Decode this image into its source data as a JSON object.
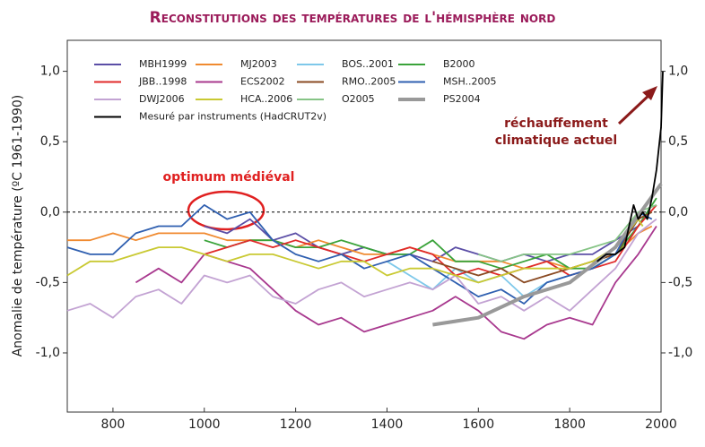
{
  "chart_data": {
    "type": "line",
    "title": "Reconstitutions des températures de l'hémisphère nord",
    "y_label": "Anomalie de température (ºC 1961-1990)",
    "annotations": [
      "optimum médiéval",
      "réchauffement",
      "climatique actuel"
    ],
    "xlim": [
      700,
      2000
    ],
    "xticks": [
      800,
      1000,
      1200,
      1400,
      1600,
      1800,
      2000
    ],
    "ylim": [
      -1.42,
      1.22
    ],
    "yticks": [
      {
        "value": 1.0,
        "label": "1,0"
      },
      {
        "value": 0.5,
        "label": "0,5"
      },
      {
        "value": 0,
        "label": "0,0"
      },
      {
        "value": -0.5,
        "label": "-0,5"
      },
      {
        "value": -1.0,
        "label": "-1,0"
      }
    ],
    "hline": 0,
    "series": [
      {
        "name": "MBH1999",
        "color": "#5b4ea6",
        "x": [
          1000,
          1050,
          1100,
          1150,
          1200,
          1250,
          1300,
          1350,
          1400,
          1450,
          1500,
          1550,
          1600,
          1650,
          1700,
          1750,
          1800,
          1850,
          1900,
          1950,
          1980
        ],
        "values": [
          -0.1,
          -0.15,
          -0.05,
          -0.2,
          -0.15,
          -0.25,
          -0.3,
          -0.25,
          -0.3,
          -0.3,
          -0.35,
          -0.25,
          -0.3,
          -0.35,
          -0.3,
          -0.35,
          -0.3,
          -0.3,
          -0.2,
          -0.1,
          0.05
        ]
      },
      {
        "name": "MJ2003",
        "color": "#f08a30",
        "x": [
          700,
          750,
          800,
          850,
          900,
          950,
          1000,
          1050,
          1100,
          1150,
          1200,
          1250,
          1300,
          1350,
          1400,
          1450,
          1500,
          1550,
          1600,
          1650,
          1700,
          1750,
          1800,
          1850,
          1900,
          1950,
          1980
        ],
        "values": [
          -0.2,
          -0.2,
          -0.15,
          -0.2,
          -0.15,
          -0.15,
          -0.15,
          -0.2,
          -0.2,
          -0.2,
          -0.25,
          -0.2,
          -0.25,
          -0.3,
          -0.3,
          -0.25,
          -0.3,
          -0.35,
          -0.35,
          -0.35,
          -0.4,
          -0.35,
          -0.4,
          -0.35,
          -0.3,
          -0.15,
          -0.1
        ]
      },
      {
        "name": "BOS..2001",
        "color": "#7ec8ea",
        "x": [
          1400,
          1450,
          1500,
          1550,
          1600,
          1650,
          1700,
          1750,
          1800,
          1850,
          1900,
          1950,
          1960
        ],
        "values": [
          -0.35,
          -0.45,
          -0.55,
          -0.4,
          -0.5,
          -0.45,
          -0.6,
          -0.5,
          -0.45,
          -0.4,
          -0.3,
          -0.05,
          -0.1
        ]
      },
      {
        "name": "B2000",
        "color": "#3aa33a",
        "x": [
          1000,
          1050,
          1100,
          1150,
          1200,
          1250,
          1300,
          1350,
          1400,
          1450,
          1500,
          1550,
          1600,
          1650,
          1700,
          1750,
          1800,
          1850,
          1900,
          1950,
          1990
        ],
        "values": [
          -0.2,
          -0.25,
          -0.2,
          -0.2,
          -0.25,
          -0.25,
          -0.2,
          -0.25,
          -0.3,
          -0.3,
          -0.2,
          -0.35,
          -0.35,
          -0.4,
          -0.35,
          -0.3,
          -0.4,
          -0.4,
          -0.3,
          -0.1,
          0.1
        ]
      },
      {
        "name": "JBB..1998",
        "color": "#e02a2a",
        "x": [
          1000,
          1050,
          1100,
          1150,
          1200,
          1250,
          1300,
          1350,
          1400,
          1450,
          1500,
          1550,
          1600,
          1650,
          1700,
          1750,
          1800,
          1850,
          1900,
          1950,
          1990
        ],
        "values": [
          -0.3,
          -0.25,
          -0.2,
          -0.25,
          -0.2,
          -0.25,
          -0.3,
          -0.35,
          -0.3,
          -0.25,
          -0.3,
          -0.45,
          -0.4,
          -0.45,
          -0.4,
          -0.35,
          -0.45,
          -0.4,
          -0.35,
          -0.1,
          0.05
        ]
      },
      {
        "name": "ECS2002",
        "color": "#a8388e",
        "x": [
          850,
          900,
          950,
          1000,
          1050,
          1100,
          1150,
          1200,
          1250,
          1300,
          1350,
          1400,
          1450,
          1500,
          1550,
          1600,
          1650,
          1700,
          1750,
          1800,
          1850,
          1900,
          1950,
          1990
        ],
        "values": [
          -0.5,
          -0.4,
          -0.5,
          -0.3,
          -0.35,
          -0.4,
          -0.55,
          -0.7,
          -0.8,
          -0.75,
          -0.85,
          -0.8,
          -0.75,
          -0.7,
          -0.6,
          -0.7,
          -0.85,
          -0.9,
          -0.8,
          -0.75,
          -0.8,
          -0.5,
          -0.3,
          -0.1
        ]
      },
      {
        "name": "RMO..2005",
        "color": "#8a4a22",
        "x": [
          1500,
          1550,
          1600,
          1650,
          1700,
          1750,
          1800,
          1850,
          1900,
          1950,
          1980
        ],
        "values": [
          -0.35,
          -0.4,
          -0.45,
          -0.4,
          -0.5,
          -0.45,
          -0.4,
          -0.35,
          -0.3,
          -0.05,
          0.0
        ]
      },
      {
        "name": "MSH..2005",
        "color": "#2f5fb0",
        "x": [
          700,
          750,
          800,
          850,
          900,
          950,
          1000,
          1050,
          1100,
          1150,
          1200,
          1250,
          1300,
          1350,
          1400,
          1450,
          1500,
          1550,
          1600,
          1650,
          1700,
          1750,
          1800,
          1850,
          1900,
          1950,
          1980
        ],
        "values": [
          -0.25,
          -0.3,
          -0.3,
          -0.15,
          -0.1,
          -0.1,
          0.05,
          -0.05,
          0.0,
          -0.2,
          -0.3,
          -0.35,
          -0.3,
          -0.4,
          -0.35,
          -0.3,
          -0.4,
          -0.5,
          -0.6,
          -0.55,
          -0.65,
          -0.5,
          -0.45,
          -0.4,
          -0.3,
          0.0,
          -0.05
        ]
      },
      {
        "name": "DWJ2006",
        "color": "#c3a3d3",
        "x": [
          700,
          750,
          800,
          850,
          900,
          950,
          1000,
          1050,
          1100,
          1150,
          1200,
          1250,
          1300,
          1350,
          1400,
          1450,
          1500,
          1550,
          1600,
          1650,
          1700,
          1750,
          1800,
          1850,
          1900,
          1950,
          1990
        ],
        "values": [
          -0.7,
          -0.65,
          -0.75,
          -0.6,
          -0.55,
          -0.65,
          -0.45,
          -0.5,
          -0.45,
          -0.6,
          -0.65,
          -0.55,
          -0.5,
          -0.6,
          -0.55,
          -0.5,
          -0.55,
          -0.45,
          -0.65,
          -0.6,
          -0.7,
          -0.6,
          -0.7,
          -0.55,
          -0.4,
          -0.15,
          -0.05
        ]
      },
      {
        "name": "HCA..2006",
        "color": "#c9c932",
        "x": [
          700,
          750,
          800,
          850,
          900,
          950,
          1000,
          1050,
          1100,
          1150,
          1200,
          1250,
          1300,
          1350,
          1400,
          1450,
          1500,
          1550,
          1600,
          1650,
          1700,
          1750,
          1800,
          1850,
          1900,
          1950,
          1960
        ],
        "values": [
          -0.45,
          -0.35,
          -0.35,
          -0.3,
          -0.25,
          -0.25,
          -0.3,
          -0.35,
          -0.3,
          -0.3,
          -0.35,
          -0.4,
          -0.35,
          -0.35,
          -0.45,
          -0.4,
          -0.4,
          -0.45,
          -0.5,
          -0.45,
          -0.4,
          -0.4,
          -0.4,
          -0.35,
          -0.25,
          -0.05,
          -0.1
        ]
      },
      {
        "name": "O2005",
        "color": "#86c486",
        "x": [
          1600,
          1650,
          1700,
          1750,
          1800,
          1850,
          1900,
          1950,
          1990
        ],
        "values": [
          -0.3,
          -0.35,
          -0.3,
          -0.3,
          -0.3,
          -0.25,
          -0.2,
          0.0,
          0.05
        ]
      },
      {
        "name": "PS2004",
        "color": "#999999",
        "linewidth": 4,
        "x": [
          1500,
          1600,
          1700,
          1800,
          1900,
          2000
        ],
        "values": [
          -0.8,
          -0.75,
          -0.6,
          -0.5,
          -0.25,
          0.2
        ]
      },
      {
        "name": "Mesuré par instruments (HadCRUT2v)",
        "color": "#000000",
        "x": [
          1860,
          1880,
          1900,
          1920,
          1940,
          1950,
          1960,
          1970,
          1980,
          1990,
          2000,
          2004
        ],
        "values": [
          -0.35,
          -0.3,
          -0.3,
          -0.25,
          0.05,
          -0.05,
          0.0,
          -0.05,
          0.1,
          0.3,
          0.6,
          1.0
        ]
      }
    ]
  }
}
